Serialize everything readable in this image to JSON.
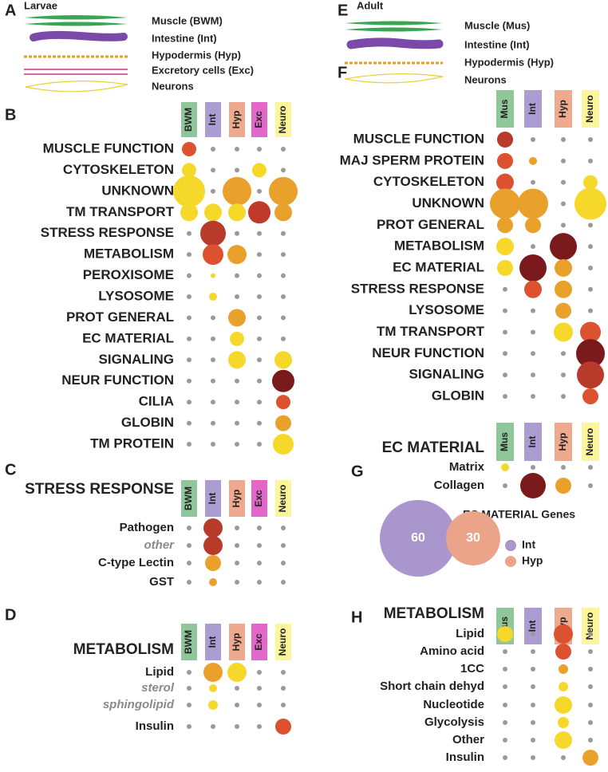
{
  "panels": {
    "A": {
      "letter": "A",
      "title": "Larvae",
      "legend": [
        "Muscle (BWM)",
        "Intestine (Int)",
        "Hypodermis (Hyp)",
        "Excretory cells (Exc)",
        "Neurons"
      ]
    },
    "B": {
      "letter": "B",
      "columns": [
        "BWM",
        "Int",
        "Hyp",
        "Exc",
        "Neuro"
      ],
      "column_colors": [
        "#8fc79a",
        "#ab9dd2",
        "#efa98f",
        "#e267c9",
        "#fbf59c"
      ],
      "rows": [
        {
          "label": "MUSCLE FUNCTION",
          "dots": [
            {
              "size": 9,
              "color": "#dc5130"
            },
            null,
            null,
            null,
            null
          ]
        },
        {
          "label": "CYTOSKELETON",
          "dots": [
            {
              "size": 9,
              "color": "#f6d82b"
            },
            null,
            null,
            {
              "size": 9,
              "color": "#f6d82b"
            },
            null
          ]
        },
        {
          "label": "UNKNOWN",
          "dots": [
            {
              "size": 20,
              "color": "#f6d82b"
            },
            null,
            {
              "size": 18,
              "color": "#e9a12c"
            },
            null,
            {
              "size": 18,
              "color": "#e9a12c"
            }
          ]
        },
        {
          "label": "TM TRANSPORT",
          "dots": [
            {
              "size": 11,
              "color": "#f6d82b"
            },
            {
              "size": 11,
              "color": "#f6d82b"
            },
            {
              "size": 11,
              "color": "#f6d82b"
            },
            {
              "size": 14,
              "color": "#c0392b"
            },
            {
              "size": 11,
              "color": "#e9a12c"
            }
          ]
        },
        {
          "label": "STRESS RESPONSE",
          "dots": [
            null,
            {
              "size": 16,
              "color": "#b83a2a"
            },
            null,
            null,
            null
          ]
        },
        {
          "label": "METABOLISM",
          "dots": [
            null,
            {
              "size": 13,
              "color": "#dc5130"
            },
            {
              "size": 12,
              "color": "#e9a12c"
            },
            null,
            null
          ]
        },
        {
          "label": "PEROXISOME",
          "dots": [
            null,
            {
              "size": 3,
              "color": "#f6d82b"
            },
            null,
            null,
            null
          ]
        },
        {
          "label": "LYSOSOME",
          "dots": [
            null,
            {
              "size": 5,
              "color": "#f6d82b"
            },
            null,
            null,
            null
          ]
        },
        {
          "label": "PROT GENERAL",
          "dots": [
            null,
            null,
            {
              "size": 11,
              "color": "#e9a12c"
            },
            null,
            null
          ]
        },
        {
          "label": "EC MATERIAL",
          "dots": [
            null,
            null,
            {
              "size": 9,
              "color": "#f6d82b"
            },
            null,
            null
          ]
        },
        {
          "label": "SIGNALING",
          "dots": [
            null,
            null,
            {
              "size": 11,
              "color": "#f6d82b"
            },
            null,
            {
              "size": 11,
              "color": "#f6d82b"
            }
          ]
        },
        {
          "label": "NEUR FUNCTION",
          "dots": [
            null,
            null,
            null,
            null,
            {
              "size": 14,
              "color": "#7b1a1c"
            }
          ]
        },
        {
          "label": "CILIA",
          "dots": [
            null,
            null,
            null,
            null,
            {
              "size": 9,
              "color": "#dc5130"
            }
          ]
        },
        {
          "label": "GLOBIN",
          "dots": [
            null,
            null,
            null,
            null,
            {
              "size": 10,
              "color": "#e9a12c"
            }
          ]
        },
        {
          "label": "TM PROTEIN",
          "dots": [
            null,
            null,
            null,
            null,
            {
              "size": 13,
              "color": "#f6d82b"
            }
          ]
        }
      ]
    },
    "C": {
      "letter": "C",
      "title": "STRESS RESPONSE",
      "columns": [
        "BWM",
        "Int",
        "Hyp",
        "Exc",
        "Neuro"
      ],
      "column_colors": [
        "#8fc79a",
        "#ab9dd2",
        "#efa98f",
        "#e267c9",
        "#fbf59c"
      ],
      "rows": [
        {
          "label": "Pathogen",
          "dots": [
            null,
            {
              "size": 12,
              "color": "#b83a2a"
            },
            null,
            null,
            null
          ]
        },
        {
          "label": "other",
          "italic": true,
          "dots": [
            null,
            {
              "size": 12,
              "color": "#b83a2a"
            },
            null,
            null,
            null
          ]
        },
        {
          "label": "C-type Lectin",
          "dots": [
            null,
            {
              "size": 10,
              "color": "#e9a12c"
            },
            null,
            null,
            null
          ]
        },
        {
          "label": "GST",
          "dots": [
            null,
            {
              "size": 5,
              "color": "#e9a12c"
            },
            null,
            null,
            null
          ]
        }
      ]
    },
    "D": {
      "letter": "D",
      "title": "METABOLISM",
      "columns": [
        "BWM",
        "Int",
        "Hyp",
        "Exc",
        "Neuro"
      ],
      "column_colors": [
        "#8fc79a",
        "#ab9dd2",
        "#efa98f",
        "#e267c9",
        "#fbf59c"
      ],
      "rows": [
        {
          "label": "Lipid",
          "dots": [
            null,
            {
              "size": 12,
              "color": "#e9a12c"
            },
            {
              "size": 12,
              "color": "#f6d82b"
            },
            null,
            null
          ]
        },
        {
          "label": "sterol",
          "italic": true,
          "dots": [
            null,
            {
              "size": 5,
              "color": "#f6d82b"
            },
            null,
            null,
            null
          ]
        },
        {
          "label": "sphingolipid",
          "italic": true,
          "dots": [
            null,
            {
              "size": 6,
              "color": "#f6d82b"
            },
            null,
            null,
            null
          ]
        },
        {
          "label": "Insulin",
          "dots": [
            null,
            null,
            null,
            null,
            {
              "size": 10,
              "color": "#dc5130"
            }
          ]
        }
      ]
    },
    "E": {
      "letter": "E",
      "title": "Adult",
      "legend": [
        "Muscle (Mus)",
        "Intestine (Int)",
        "Hypodermis (Hyp)",
        "Neurons"
      ]
    },
    "F": {
      "letter": "F",
      "columns": [
        "Mus",
        "Int",
        "Hyp",
        "Neuro"
      ],
      "column_colors": [
        "#8fc79a",
        "#ab9dd2",
        "#efa98f",
        "#fbf59c"
      ],
      "rows": [
        {
          "label": "MUSCLE FUNCTION",
          "dots": [
            {
              "size": 10,
              "color": "#b83a2a"
            },
            null,
            null,
            null
          ]
        },
        {
          "label": "MAJ SPERM PROTEIN",
          "dots": [
            {
              "size": 10,
              "color": "#dc5130"
            },
            {
              "size": 5,
              "color": "#e9a12c"
            },
            null,
            null
          ]
        },
        {
          "label": "CYTOSKELETON",
          "dots": [
            {
              "size": 11,
              "color": "#dc5130"
            },
            null,
            null,
            {
              "size": 9,
              "color": "#f6d82b"
            }
          ]
        },
        {
          "label": "UNKNOWN",
          "dots": [
            {
              "size": 19,
              "color": "#e9a12c"
            },
            {
              "size": 19,
              "color": "#e9a12c"
            },
            null,
            {
              "size": 20,
              "color": "#f6d82b"
            }
          ]
        },
        {
          "label": "PROT GENERAL",
          "dots": [
            {
              "size": 10,
              "color": "#e9a12c"
            },
            {
              "size": 10,
              "color": "#e9a12c"
            },
            null,
            null
          ]
        },
        {
          "label": "METABOLISM",
          "dots": [
            {
              "size": 11,
              "color": "#f6d82b"
            },
            null,
            {
              "size": 17,
              "color": "#7b1a1c"
            },
            null
          ]
        },
        {
          "label": "EC MATERIAL",
          "dots": [
            {
              "size": 10,
              "color": "#f6d82b"
            },
            {
              "size": 17,
              "color": "#7b1a1c"
            },
            {
              "size": 11,
              "color": "#e9a12c"
            },
            null
          ]
        },
        {
          "label": "STRESS RESPONSE",
          "dots": [
            null,
            {
              "size": 11,
              "color": "#dc5130"
            },
            {
              "size": 11,
              "color": "#e9a12c"
            },
            null
          ]
        },
        {
          "label": "LYSOSOME",
          "dots": [
            null,
            null,
            {
              "size": 10,
              "color": "#e9a12c"
            },
            null
          ]
        },
        {
          "label": "TM TRANSPORT",
          "dots": [
            null,
            null,
            {
              "size": 12,
              "color": "#f6d82b"
            },
            {
              "size": 13,
              "color": "#dc5130"
            }
          ]
        },
        {
          "label": "NEUR FUNCTION",
          "dots": [
            null,
            null,
            null,
            {
              "size": 18,
              "color": "#7b1a1c"
            }
          ]
        },
        {
          "label": "SIGNALING",
          "dots": [
            null,
            null,
            null,
            {
              "size": 17,
              "color": "#b83a2a"
            }
          ]
        },
        {
          "label": "GLOBIN",
          "dots": [
            null,
            null,
            null,
            {
              "size": 10,
              "color": "#dc5130"
            }
          ]
        }
      ]
    },
    "F2": {
      "title": "EC MATERIAL",
      "columns": [
        "Mus",
        "Int",
        "Hyp",
        "Neuro"
      ],
      "column_colors": [
        "#8fc79a",
        "#ab9dd2",
        "#efa98f",
        "#fbf59c"
      ],
      "rows": [
        {
          "label": "Matrix",
          "dots": [
            {
              "size": 5,
              "color": "#f6d82b"
            },
            null,
            null,
            null
          ]
        },
        {
          "label": "Collagen",
          "dots": [
            null,
            {
              "size": 16,
              "color": "#7b1a1c"
            },
            {
              "size": 10,
              "color": "#e9a12c"
            },
            null
          ]
        }
      ]
    },
    "G": {
      "letter": "G",
      "title": "EC MATERIAL Genes",
      "circles": [
        {
          "name": "Int",
          "value": 60,
          "color": "#a896cc"
        },
        {
          "name": "Hyp",
          "value": 30,
          "color": "#eba48a"
        }
      ]
    },
    "H": {
      "letter": "H",
      "title": "METABOLISM",
      "columns": [
        "Mus",
        "Int",
        "Hyp",
        "Neuro"
      ],
      "column_colors": [
        "#8fc79a",
        "#ab9dd2",
        "#efa98f",
        "#fbf59c"
      ],
      "rows": [
        {
          "label": "Lipid",
          "dots": [
            {
              "size": 10,
              "color": "#f6d82b"
            },
            null,
            {
              "size": 12,
              "color": "#dc5130"
            },
            null
          ]
        },
        {
          "label": "Amino acid",
          "dots": [
            null,
            null,
            {
              "size": 10,
              "color": "#dc5130"
            },
            null
          ]
        },
        {
          "label": "1CC",
          "dots": [
            null,
            null,
            {
              "size": 6,
              "color": "#e9a12c"
            },
            null
          ]
        },
        {
          "label": "Short chain dehyd",
          "dots": [
            null,
            null,
            {
              "size": 6,
              "color": "#f6d82b"
            },
            null
          ]
        },
        {
          "label": "Nucleotide",
          "dots": [
            null,
            null,
            {
              "size": 11,
              "color": "#f6d82b"
            },
            null
          ]
        },
        {
          "label": "Glycolysis",
          "dots": [
            null,
            null,
            {
              "size": 7,
              "color": "#f6d82b"
            },
            null
          ]
        },
        {
          "label": "Other",
          "dots": [
            null,
            null,
            {
              "size": 11,
              "color": "#f6d82b"
            },
            null
          ]
        },
        {
          "label": "Insulin",
          "dots": [
            null,
            null,
            null,
            {
              "size": 10,
              "color": "#e9a12c"
            }
          ]
        }
      ]
    }
  }
}
